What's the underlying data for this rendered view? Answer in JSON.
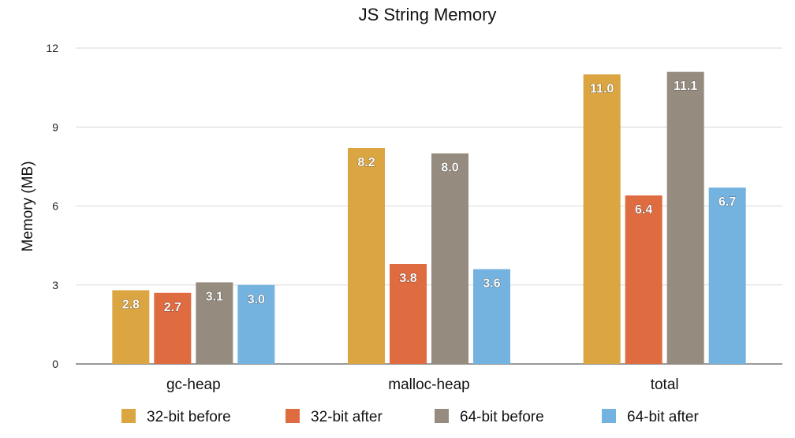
{
  "chart_data": {
    "type": "bar",
    "title": "JS String Memory",
    "xlabel": "",
    "ylabel": "Memory (MB)",
    "ylim": [
      0,
      12
    ],
    "yticks": [
      0,
      3,
      6,
      9,
      12
    ],
    "grid": true,
    "legend_position": "bottom",
    "categories": [
      "gc-heap",
      "malloc-heap",
      "total"
    ],
    "series": [
      {
        "name": "32-bit before",
        "color": "#dba541",
        "values": [
          2.8,
          8.2,
          11.0
        ],
        "labels": [
          "2.8",
          "8.2",
          "11.0"
        ]
      },
      {
        "name": "32-bit after",
        "color": "#df6b40",
        "values": [
          2.7,
          3.8,
          6.4
        ],
        "labels": [
          "2.7",
          "3.8",
          "6.4"
        ]
      },
      {
        "name": "64-bit before",
        "color": "#968b7f",
        "values": [
          3.1,
          8.0,
          11.1
        ],
        "labels": [
          "3.1",
          "8.0",
          "11.1"
        ]
      },
      {
        "name": "64-bit after",
        "color": "#74b2e0",
        "values": [
          3.0,
          3.6,
          6.7
        ],
        "labels": [
          "3.0",
          "3.6",
          "6.7"
        ]
      }
    ]
  }
}
